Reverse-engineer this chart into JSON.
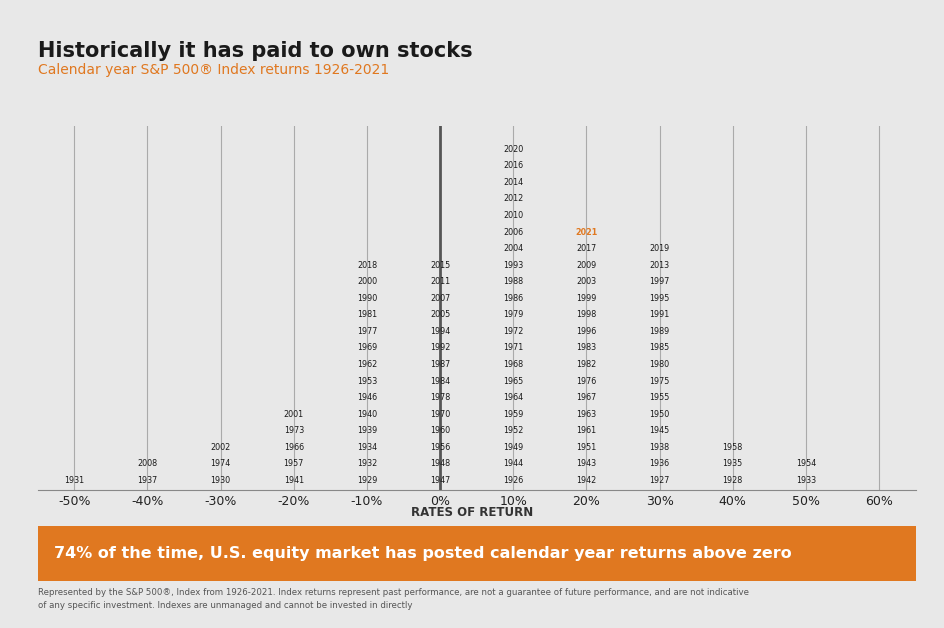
{
  "title": "Historically it has paid to own stocks",
  "subtitle": "Calendar year S&P 500® Index returns 1926-2021",
  "background_color": "#e8e8e8",
  "title_color": "#1a1a1a",
  "subtitle_color": "#e07820",
  "orange_color": "#e07820",
  "dark_color": "#1a1a1a",
  "rates_of_return_label": "RATES OF RETURN",
  "banner_text": "74% of the time, U.S. equity market has posted calendar year returns above zero",
  "footer_line1": "Represented by the S&P 500®, Index from 1926-2021. Index returns represent past performance, are not a guarantee of future performance, and are not indicative",
  "footer_line2": "of any specific investment. Indexes are unmanaged and cannot be invested in directly",
  "columns": {
    "-50%": [
      "1931"
    ],
    "-40%": [
      "2008",
      "1937"
    ],
    "-30%": [
      "2002",
      "1974",
      "1930"
    ],
    "-20%": [
      "2001",
      "1973",
      "1966",
      "1957",
      "1941"
    ],
    "-10%": [
      "2018",
      "2000",
      "1990",
      "1981",
      "1977",
      "1969",
      "1962",
      "1953",
      "1946",
      "1940",
      "1939",
      "1934",
      "1932",
      "1929"
    ],
    "0%": [
      "2015",
      "2011",
      "2007",
      "2005",
      "1994",
      "1992",
      "1987",
      "1984",
      "1978",
      "1970",
      "1960",
      "1956",
      "1948",
      "1947"
    ],
    "10%": [
      "2020",
      "2016",
      "2014",
      "2012",
      "2010",
      "2006",
      "2004",
      "1993",
      "1988",
      "1986",
      "1979",
      "1972",
      "1971",
      "1968",
      "1965",
      "1964",
      "1959",
      "1952",
      "1949",
      "1944",
      "1926"
    ],
    "20%": [
      "2021",
      "2017",
      "2009",
      "2003",
      "1999",
      "1998",
      "1996",
      "1983",
      "1982",
      "1976",
      "1967",
      "1963",
      "1961",
      "1951",
      "1943",
      "1942"
    ],
    "30%": [
      "2019",
      "2013",
      "1997",
      "1995",
      "1991",
      "1989",
      "1985",
      "1980",
      "1975",
      "1955",
      "1950",
      "1945",
      "1938",
      "1936",
      "1927"
    ],
    "40%": [
      "1958",
      "1935",
      "1928"
    ],
    "50%": [
      "1954",
      "1933"
    ]
  },
  "highlight_year": "2021",
  "xlabels": [
    "-50%",
    "-40%",
    "-30%",
    "-20%",
    "-10%",
    "0%",
    "10%",
    "20%",
    "30%",
    "40%",
    "50%",
    "60%"
  ],
  "x_positions": [
    -50,
    -40,
    -30,
    -20,
    -10,
    0,
    10,
    20,
    30,
    40,
    50,
    60
  ],
  "col_x": {
    "-50%": -50,
    "-40%": -40,
    "-30%": -30,
    "-20%": -20,
    "-10%": -10,
    "0%": 0,
    "10%": 10,
    "20%": 20,
    "30%": 30,
    "40%": 40,
    "50%": 50
  },
  "xmin": -55,
  "xmax": 65
}
